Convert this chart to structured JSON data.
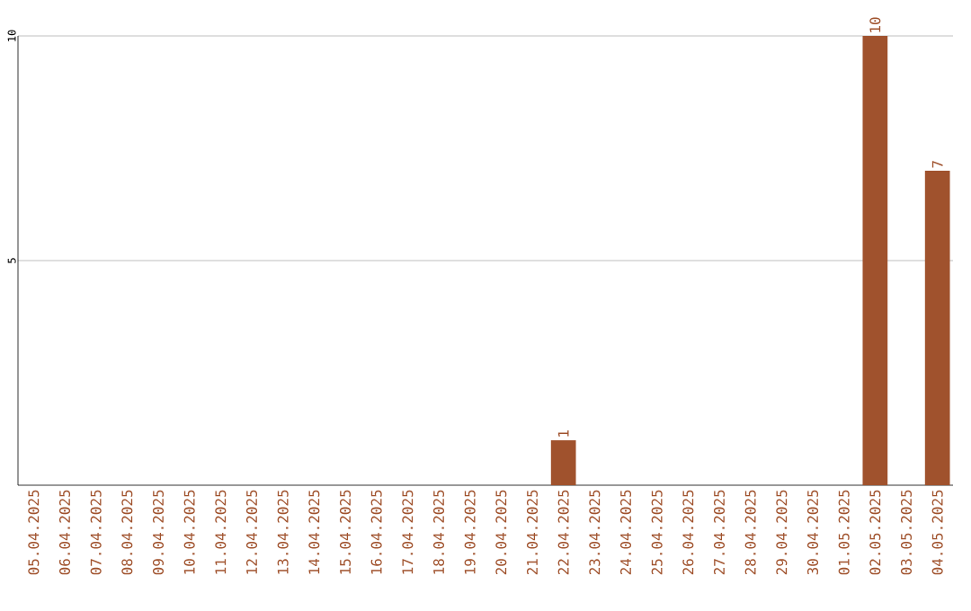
{
  "chart_data": {
    "type": "bar",
    "categories": [
      "05.04.2025",
      "06.04.2025",
      "07.04.2025",
      "08.04.2025",
      "09.04.2025",
      "10.04.2025",
      "11.04.2025",
      "12.04.2025",
      "13.04.2025",
      "14.04.2025",
      "15.04.2025",
      "16.04.2025",
      "17.04.2025",
      "18.04.2025",
      "19.04.2025",
      "20.04.2025",
      "21.04.2025",
      "22.04.2025",
      "23.04.2025",
      "24.04.2025",
      "25.04.2025",
      "26.04.2025",
      "27.04.2025",
      "28.04.2025",
      "29.04.2025",
      "30.04.2025",
      "01.05.2025",
      "02.05.2025",
      "03.05.2025",
      "04.05.2025"
    ],
    "values": [
      0,
      0,
      0,
      0,
      0,
      0,
      0,
      0,
      0,
      0,
      0,
      0,
      0,
      0,
      0,
      0,
      0,
      1,
      0,
      0,
      0,
      0,
      0,
      0,
      0,
      0,
      0,
      10,
      0,
      7
    ],
    "value_labels": [
      null,
      null,
      null,
      null,
      null,
      null,
      null,
      null,
      null,
      null,
      null,
      null,
      null,
      null,
      null,
      null,
      null,
      "1",
      null,
      null,
      null,
      null,
      null,
      null,
      null,
      null,
      null,
      "10",
      null,
      "7"
    ],
    "color": "#a0522d",
    "ylim": [
      0,
      10
    ],
    "yticks": [
      5,
      10
    ],
    "grid": "y"
  }
}
